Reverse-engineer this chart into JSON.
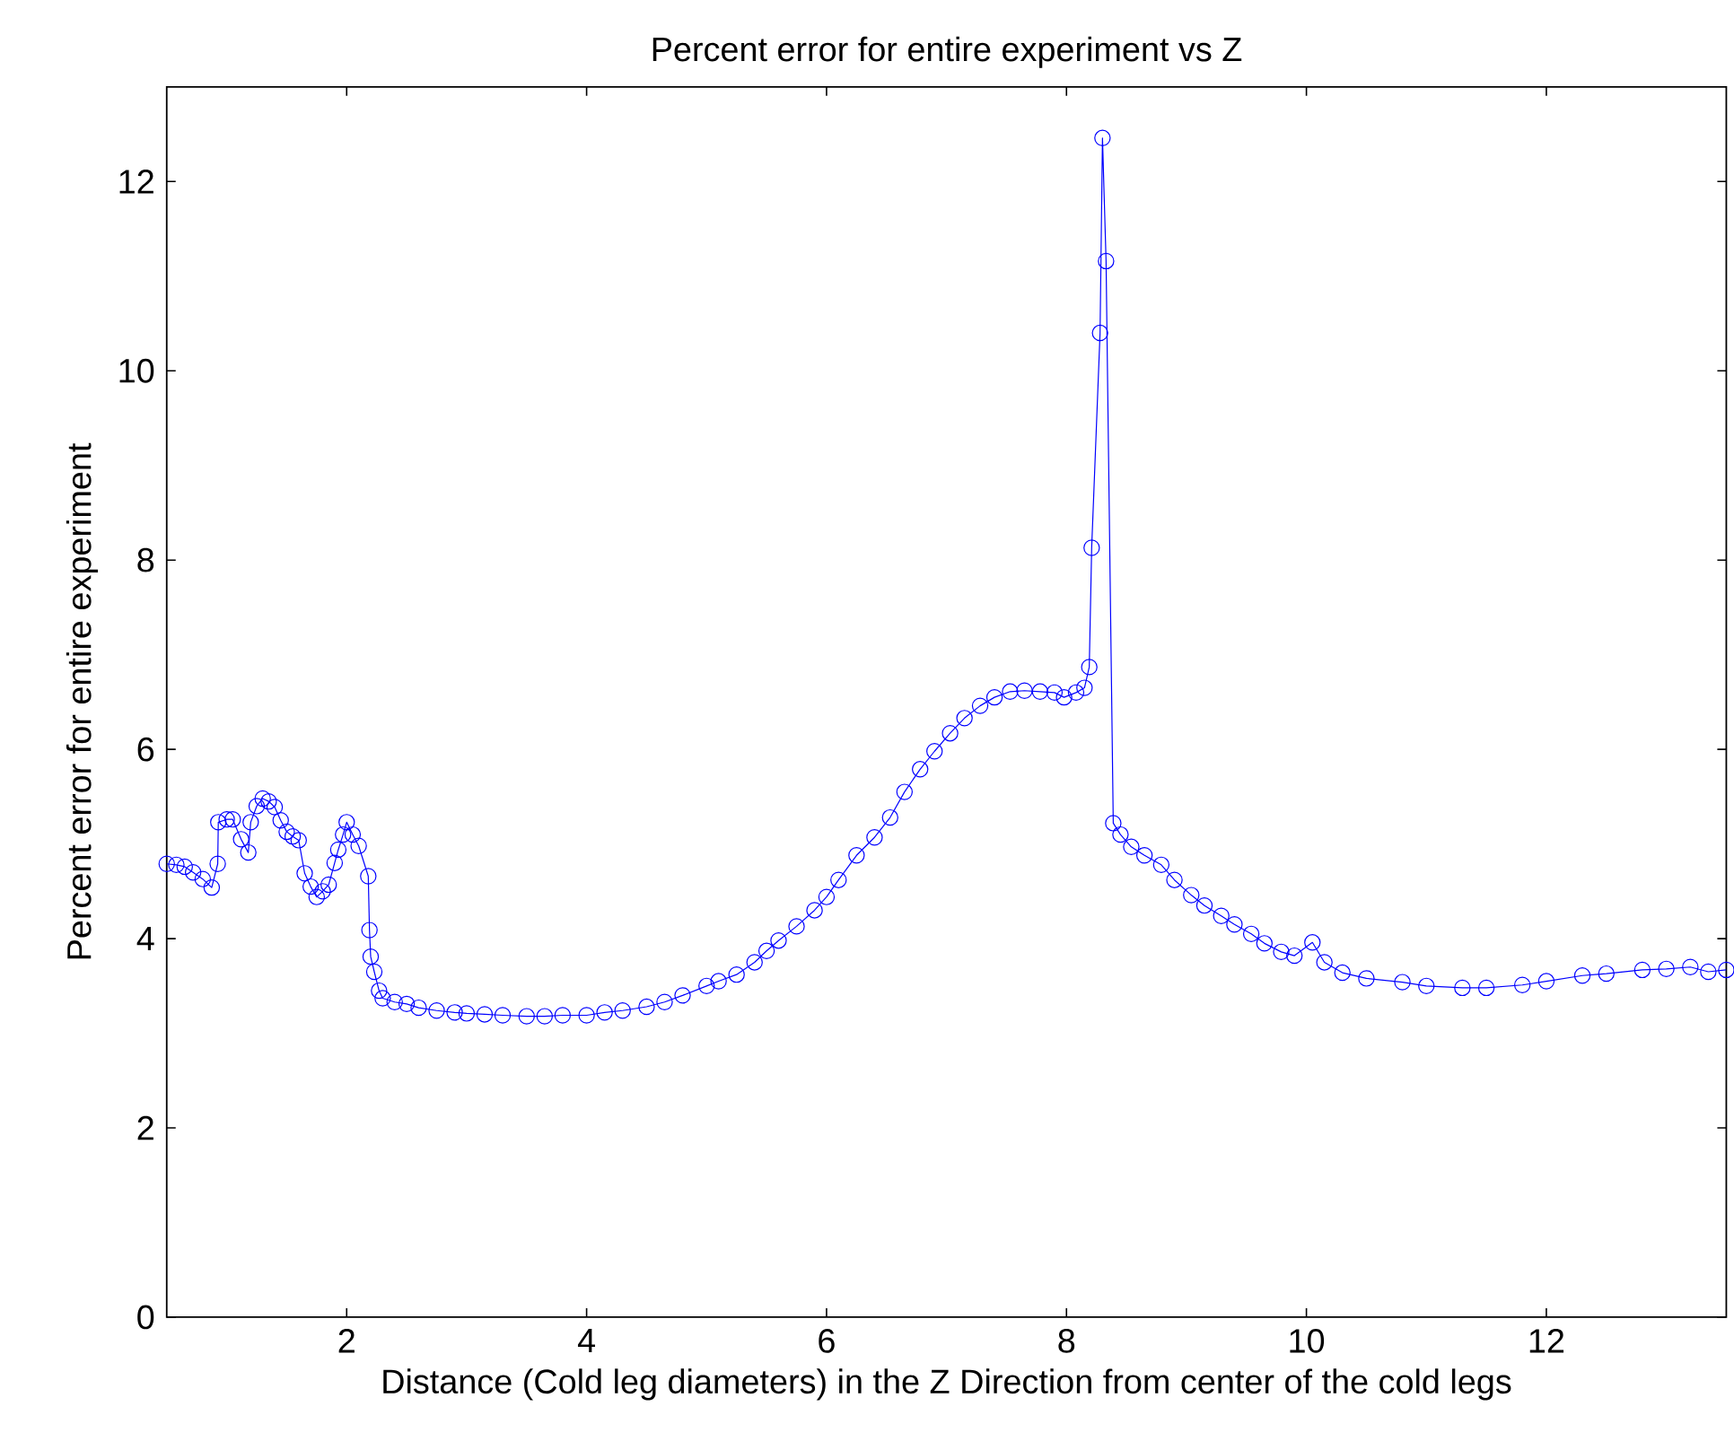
{
  "chart_data": {
    "type": "line",
    "title": "Percent error for entire experiment vs Z",
    "xlabel": "Distance (Cold leg diameters) in the Z Direction from center of the cold legs",
    "ylabel": "Percent error for entire experiment",
    "xlim": [
      0.5,
      13.5
    ],
    "ylim": [
      0,
      13
    ],
    "xticks": [
      2,
      4,
      6,
      8,
      10,
      12
    ],
    "yticks": [
      0,
      2,
      4,
      6,
      8,
      10,
      12
    ],
    "grid": false,
    "marker": "circle",
    "line_style": "solid",
    "series": [
      {
        "color": "#0000ff",
        "x": [
          0.5,
          0.58,
          0.65,
          0.72,
          0.8,
          0.875,
          0.925,
          0.93,
          1.0,
          1.05,
          1.12,
          1.18,
          1.2,
          1.25,
          1.3,
          1.35,
          1.4,
          1.45,
          1.5,
          1.55,
          1.6,
          1.65,
          1.7,
          1.75,
          1.8,
          1.85,
          1.9,
          1.93,
          1.97,
          2.0,
          2.05,
          2.1,
          2.18,
          2.19,
          2.2,
          2.23,
          2.27,
          2.3,
          2.4,
          2.5,
          2.6,
          2.75,
          2.9,
          3.0,
          3.15,
          3.3,
          3.5,
          3.65,
          3.8,
          4.0,
          4.15,
          4.3,
          4.5,
          4.65,
          4.8,
          5.0,
          5.1,
          5.25,
          5.4,
          5.5,
          5.6,
          5.75,
          5.9,
          6.0,
          6.1,
          6.25,
          6.4,
          6.53,
          6.65,
          6.78,
          6.9,
          7.03,
          7.15,
          7.28,
          7.4,
          7.53,
          7.65,
          7.78,
          7.9,
          7.98,
          8.08,
          8.15,
          8.19,
          8.21,
          8.28,
          8.3,
          8.33,
          8.39,
          8.45,
          8.54,
          8.65,
          8.79,
          8.9,
          9.04,
          9.15,
          9.29,
          9.4,
          9.54,
          9.65,
          9.79,
          9.9,
          10.05,
          10.15,
          10.3,
          10.5,
          10.8,
          11.0,
          11.3,
          11.5,
          11.8,
          12.0,
          12.3,
          12.5,
          12.8,
          13.0,
          13.2,
          13.35,
          13.5
        ],
        "values": [
          4.79,
          4.78,
          4.76,
          4.7,
          4.63,
          4.54,
          4.79,
          5.23,
          5.26,
          5.26,
          5.05,
          4.91,
          5.23,
          5.4,
          5.48,
          5.45,
          5.39,
          5.25,
          5.13,
          5.08,
          5.04,
          4.69,
          4.55,
          4.44,
          4.5,
          4.57,
          4.8,
          4.94,
          5.1,
          5.23,
          5.1,
          4.98,
          4.66,
          4.09,
          3.81,
          3.65,
          3.45,
          3.37,
          3.33,
          3.31,
          3.27,
          3.24,
          3.22,
          3.21,
          3.2,
          3.19,
          3.18,
          3.18,
          3.19,
          3.19,
          3.22,
          3.24,
          3.28,
          3.33,
          3.4,
          3.5,
          3.55,
          3.62,
          3.75,
          3.87,
          3.98,
          4.13,
          4.3,
          4.44,
          4.62,
          4.88,
          5.07,
          5.28,
          5.55,
          5.79,
          5.98,
          6.17,
          6.33,
          6.46,
          6.55,
          6.61,
          6.62,
          6.61,
          6.6,
          6.55,
          6.6,
          6.65,
          6.87,
          8.13,
          10.4,
          12.46,
          11.16,
          5.22,
          5.1,
          4.97,
          4.88,
          4.78,
          4.62,
          4.46,
          4.35,
          4.24,
          4.15,
          4.05,
          3.95,
          3.86,
          3.82,
          3.96,
          3.75,
          3.64,
          3.58,
          3.54,
          3.5,
          3.48,
          3.48,
          3.51,
          3.55,
          3.61,
          3.63,
          3.67,
          3.68,
          3.7,
          3.65,
          3.67
        ]
      }
    ]
  }
}
